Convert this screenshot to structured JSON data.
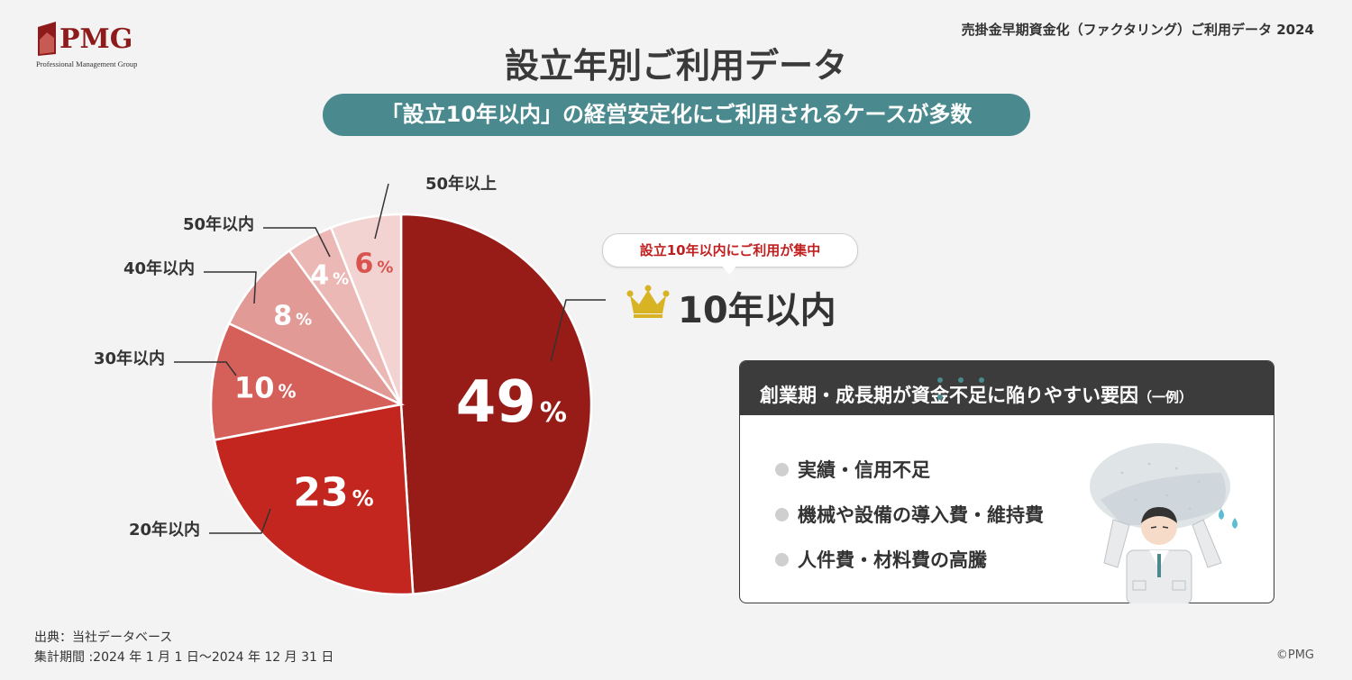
{
  "brand": {
    "name": "PMG",
    "subtitle": "Professional Management Group"
  },
  "header_right": "売掛金早期資金化（ファクタリング）ご利用データ 2024",
  "title": "設立年別ご利用データ",
  "banner": "「設立10年以内」の経営安定化にご利用されるケースが多数",
  "callout": {
    "tag": "設立10年以内にご利用が集中",
    "winner": "10年以内",
    "icon": "crown-icon"
  },
  "factors": {
    "heading": "創業期・成長期が資金不足に陥りやすい要因",
    "heading_suffix": "（一例）",
    "items": [
      "実績・信用不足",
      "機械や設備の導入費・維持費",
      "人件費・材料費の高騰"
    ],
    "illustration": "worker-lifting-rock-icon"
  },
  "source": {
    "line1": "出典：当社データベース",
    "line2": "集計期間 :2024 年 1 月 1 日～2024 年 12 月 31 日"
  },
  "copyright": "©PMG",
  "chart_data": {
    "type": "pie",
    "unit": "%",
    "slices": [
      {
        "label": "10年以内",
        "value": 49,
        "color": "#971c18"
      },
      {
        "label": "20年以内",
        "value": 23,
        "color": "#c2261f"
      },
      {
        "label": "30年以内",
        "value": 10,
        "color": "#d5605a"
      },
      {
        "label": "40年以内",
        "value": 8,
        "color": "#e29a97"
      },
      {
        "label": "50年以内",
        "value": 4,
        "color": "#ebb8b6"
      },
      {
        "label": "50年以上",
        "value": 6,
        "color": "#f3d3d1"
      }
    ]
  }
}
